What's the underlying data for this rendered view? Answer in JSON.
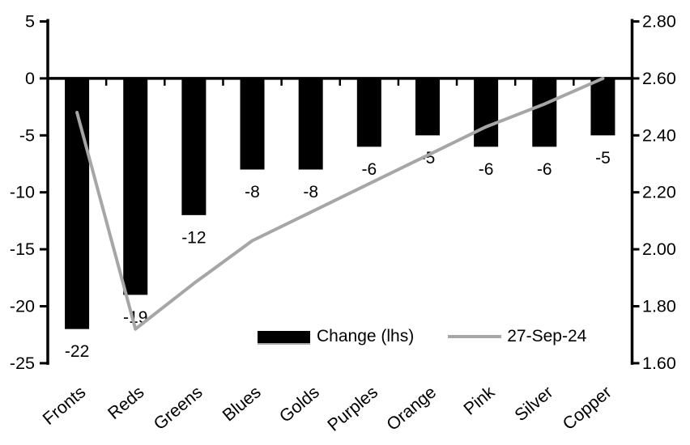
{
  "chart_data": {
    "type": "combo",
    "title": "",
    "categories": [
      "Fronts",
      "Reds",
      "Greens",
      "Blues",
      "Golds",
      "Purples",
      "Orange",
      "Pink",
      "Silver",
      "Copper"
    ],
    "series": [
      {
        "name": "Change (lhs)",
        "type": "bar",
        "axis": "left",
        "color": "#000000",
        "values": [
          -22,
          -19,
          -12,
          -8,
          -8,
          -6,
          -5,
          -6,
          -6,
          -5
        ],
        "data_labels": [
          "-22",
          "-19",
          "-12",
          "-8",
          "-8",
          "-6",
          "-5",
          "-6",
          "-6",
          "-5"
        ]
      },
      {
        "name": "27-Sep-24",
        "type": "line",
        "axis": "right",
        "color": "#a6a6a6",
        "values": [
          2.48,
          1.72,
          1.88,
          2.03,
          2.13,
          2.23,
          2.33,
          2.43,
          2.51,
          2.6
        ]
      }
    ],
    "left_axis": {
      "min": -25,
      "max": 5,
      "step": 5,
      "tick_labels": [
        "5",
        "0",
        "-5",
        "-10",
        "-15",
        "-20",
        "-25"
      ]
    },
    "right_axis": {
      "min": 1.6,
      "max": 2.8,
      "step": 0.2,
      "tick_labels": [
        "2.80",
        "2.60",
        "2.40",
        "2.20",
        "2.00",
        "1.80",
        "1.60"
      ]
    },
    "legend": {
      "position": "inside-bottom",
      "entries": [
        "Change (lhs)",
        "27-Sep-24"
      ]
    },
    "grid": false,
    "category_label_rotation_deg": -40
  },
  "colors": {
    "background": "#ffffff",
    "bar": "#000000",
    "line": "#a6a6a6",
    "axis": "#000000",
    "text": "#000000"
  }
}
